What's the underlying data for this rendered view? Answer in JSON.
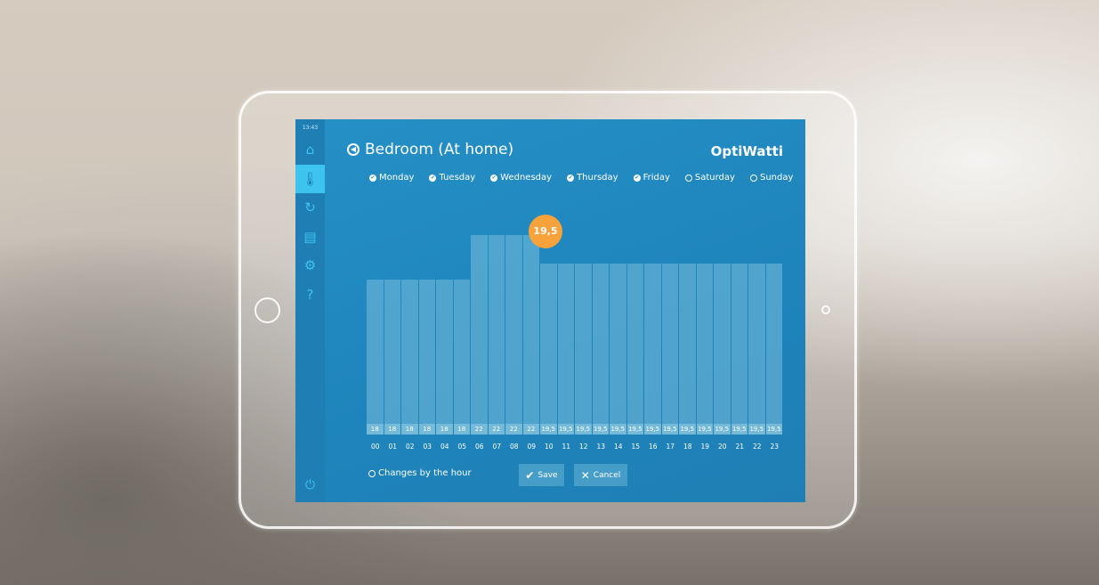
{
  "status": {
    "time": "13:43"
  },
  "sidebar": {
    "items": [
      {
        "icon": "home-icon",
        "glyph": "⌂"
      },
      {
        "icon": "thermometer-icon",
        "glyph": "🌡"
      },
      {
        "icon": "energy-icon",
        "glyph": "↻"
      },
      {
        "icon": "device-icon",
        "glyph": "▤"
      },
      {
        "icon": "gear-icon",
        "glyph": "⚙"
      },
      {
        "icon": "help-icon",
        "glyph": "?"
      }
    ],
    "power_icon": "⏻"
  },
  "header": {
    "title": "Bedroom (At home)",
    "brand": "OptiWatti"
  },
  "days": [
    {
      "label": "Monday",
      "checked": true
    },
    {
      "label": "Tuesday",
      "checked": true
    },
    {
      "label": "Wednesday",
      "checked": true
    },
    {
      "label": "Thursday",
      "checked": true
    },
    {
      "label": "Friday",
      "checked": true
    },
    {
      "label": "Saturday",
      "checked": false
    },
    {
      "label": "Sunday",
      "checked": false
    }
  ],
  "chart_data": {
    "type": "bar",
    "categories": [
      "00",
      "01",
      "02",
      "03",
      "04",
      "05",
      "06",
      "07",
      "08",
      "09",
      "10",
      "11",
      "12",
      "13",
      "14",
      "15",
      "16",
      "17",
      "18",
      "19",
      "20",
      "21",
      "22",
      "23"
    ],
    "values": [
      18,
      18,
      18,
      18,
      18,
      18,
      22,
      22,
      22,
      22,
      19.5,
      19.5,
      19.5,
      19.5,
      19.5,
      19.5,
      19.5,
      19.5,
      19.5,
      19.5,
      19.5,
      19.5,
      19.5,
      19.5
    ],
    "labels": [
      "18",
      "18",
      "18",
      "18",
      "18",
      "18",
      "22",
      "22",
      "22",
      "22",
      "19,5",
      "19,5",
      "19,5",
      "19,5",
      "19,5",
      "19,5",
      "19,5",
      "19,5",
      "19,5",
      "19,5",
      "19,5",
      "19,5",
      "19,5",
      "19,5"
    ],
    "selected_index": 10,
    "selected_label": "19,5"
  },
  "footer": {
    "changes_label": "Changes by the hour",
    "save_label": "Save",
    "cancel_label": "Cancel"
  },
  "colors": {
    "screen": "#2590c6",
    "accent": "#3cc4ef",
    "bubble": "#f7a23a"
  }
}
